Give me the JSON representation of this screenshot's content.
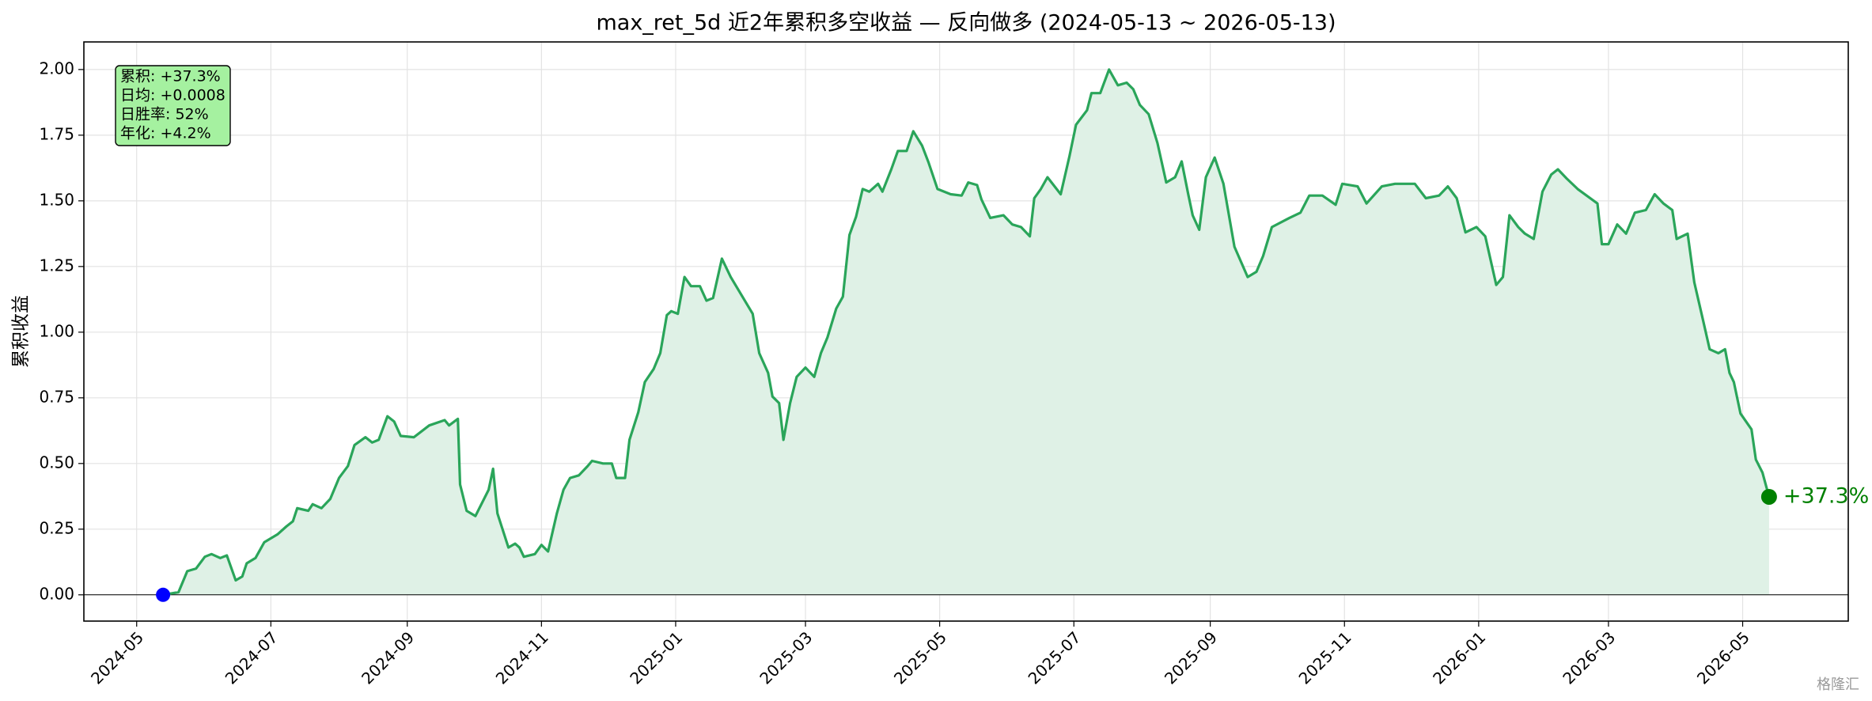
{
  "chart_data": {
    "type": "line",
    "title": "max_ret_5d 近2年累积多空收益 — 反向做多 (2024-05-13 ~ 2026-05-13)",
    "ylabel": "累积收益",
    "annotation": [
      "累积: +37.3%",
      "日均: +0.0008",
      "日胜率: 52%",
      "年化: +4.2%"
    ],
    "end_label": "+37.3%",
    "watermark": "格隆汇",
    "color": "#2aa55a",
    "fill_color": "#dff1e6",
    "start_color": "#0000ff",
    "end_color": "#008000",
    "grid": true,
    "xlim": [
      "2024-04-07",
      "2026-06-18"
    ],
    "xticks": [
      {
        "value": "2024-05-01",
        "label": "2024-05"
      },
      {
        "value": "2024-07-01",
        "label": "2024-07"
      },
      {
        "value": "2024-09-01",
        "label": "2024-09"
      },
      {
        "value": "2024-11-01",
        "label": "2024-11"
      },
      {
        "value": "2025-01-01",
        "label": "2025-01"
      },
      {
        "value": "2025-03-01",
        "label": "2025-03"
      },
      {
        "value": "2025-05-01",
        "label": "2025-05"
      },
      {
        "value": "2025-07-01",
        "label": "2025-07"
      },
      {
        "value": "2025-09-01",
        "label": "2025-09"
      },
      {
        "value": "2025-11-01",
        "label": "2025-11"
      },
      {
        "value": "2026-01-01",
        "label": "2026-01"
      },
      {
        "value": "2026-03-01",
        "label": "2026-03"
      },
      {
        "value": "2026-05-01",
        "label": "2026-05"
      }
    ],
    "ylim": [
      -0.1,
      2.105
    ],
    "yticks": [
      {
        "value": 0,
        "label": "0.00"
      },
      {
        "value": 0.25,
        "label": "0.25"
      },
      {
        "value": 0.5,
        "label": "0.50"
      },
      {
        "value": 0.75,
        "label": "0.75"
      },
      {
        "value": 1,
        "label": "1.00"
      },
      {
        "value": 1.25,
        "label": "1.25"
      },
      {
        "value": 1.5,
        "label": "1.50"
      },
      {
        "value": 1.75,
        "label": "1.75"
      },
      {
        "value": 2,
        "label": "2.00"
      }
    ],
    "x": [
      "2024-05-13",
      "2024-05-20",
      "2024-05-24",
      "2024-05-28",
      "2024-06-01",
      "2024-06-04",
      "2024-06-08",
      "2024-06-11",
      "2024-06-15",
      "2024-06-18",
      "2024-06-20",
      "2024-06-24",
      "2024-06-28",
      "2024-07-04",
      "2024-07-08",
      "2024-07-11",
      "2024-07-13",
      "2024-07-18",
      "2024-07-20",
      "2024-07-24",
      "2024-07-28",
      "2024-08-01",
      "2024-08-05",
      "2024-08-08",
      "2024-08-13",
      "2024-08-16",
      "2024-08-19",
      "2024-08-23",
      "2024-08-26",
      "2024-08-29",
      "2024-09-04",
      "2024-09-11",
      "2024-09-18",
      "2024-09-20",
      "2024-09-24",
      "2024-09-25",
      "2024-09-28",
      "2024-10-02",
      "2024-10-08",
      "2024-10-10",
      "2024-10-12",
      "2024-10-17",
      "2024-10-20",
      "2024-10-22",
      "2024-10-24",
      "2024-10-29",
      "2024-11-01",
      "2024-11-04",
      "2024-11-08",
      "2024-11-11",
      "2024-11-14",
      "2024-11-18",
      "2024-11-22",
      "2024-11-24",
      "2024-11-29",
      "2024-12-03",
      "2024-12-05",
      "2024-12-09",
      "2024-12-11",
      "2024-12-15",
      "2024-12-18",
      "2024-12-22",
      "2024-12-25",
      "2024-12-28",
      "2024-12-30",
      "2025-01-02",
      "2025-01-05",
      "2025-01-08",
      "2025-01-12",
      "2025-01-15",
      "2025-01-18",
      "2025-01-22",
      "2025-01-26",
      "2025-02-05",
      "2025-02-08",
      "2025-02-12",
      "2025-02-14",
      "2025-02-17",
      "2025-02-19",
      "2025-02-22",
      "2025-02-25",
      "2025-03-01",
      "2025-03-05",
      "2025-03-08",
      "2025-03-11",
      "2025-03-15",
      "2025-03-18",
      "2025-03-21",
      "2025-03-24",
      "2025-03-27",
      "2025-03-30",
      "2025-04-03",
      "2025-04-05",
      "2025-04-09",
      "2025-04-12",
      "2025-04-16",
      "2025-04-19",
      "2025-04-23",
      "2025-04-26",
      "2025-04-30",
      "2025-05-06",
      "2025-05-11",
      "2025-05-14",
      "2025-05-18",
      "2025-05-20",
      "2025-05-24",
      "2025-05-30",
      "2025-06-03",
      "2025-06-07",
      "2025-06-11",
      "2025-06-13",
      "2025-06-16",
      "2025-06-19",
      "2025-06-25",
      "2025-06-29",
      "2025-07-02",
      "2025-07-07",
      "2025-07-09",
      "2025-07-13",
      "2025-07-17",
      "2025-07-21",
      "2025-07-25",
      "2025-07-28",
      "2025-07-31",
      "2025-08-04",
      "2025-08-08",
      "2025-08-12",
      "2025-08-16",
      "2025-08-19",
      "2025-08-22",
      "2025-08-24",
      "2025-08-27",
      "2025-08-30",
      "2025-09-03",
      "2025-09-07",
      "2025-09-12",
      "2025-09-18",
      "2025-09-22",
      "2025-09-25",
      "2025-09-29",
      "2025-10-07",
      "2025-10-12",
      "2025-10-16",
      "2025-10-22",
      "2025-10-28",
      "2025-10-31",
      "2025-11-07",
      "2025-11-11",
      "2025-11-18",
      "2025-11-24",
      "2025-12-03",
      "2025-12-08",
      "2025-12-14",
      "2025-12-18",
      "2025-12-22",
      "2025-12-26",
      "2025-12-31",
      "2026-01-04",
      "2026-01-09",
      "2026-01-12",
      "2026-01-15",
      "2026-01-19",
      "2026-01-22",
      "2026-01-26",
      "2026-01-30",
      "2026-02-03",
      "2026-02-06",
      "2026-02-10",
      "2026-02-15",
      "2026-02-24",
      "2026-02-26",
      "2026-03-01",
      "2026-03-05",
      "2026-03-09",
      "2026-03-13",
      "2026-03-18",
      "2026-03-22",
      "2026-03-26",
      "2026-03-30",
      "2026-04-01",
      "2026-04-06",
      "2026-04-09",
      "2026-04-13",
      "2026-04-16",
      "2026-04-20",
      "2026-04-23",
      "2026-04-25",
      "2026-04-27",
      "2026-04-30",
      "2026-05-05",
      "2026-05-07",
      "2026-05-10",
      "2026-05-13"
    ],
    "values": [
      0,
      0.01,
      0.09,
      0.1,
      0.145,
      0.155,
      0.14,
      0.15,
      0.055,
      0.07,
      0.12,
      0.14,
      0.2,
      0.23,
      0.26,
      0.28,
      0.33,
      0.32,
      0.345,
      0.33,
      0.365,
      0.445,
      0.49,
      0.57,
      0.6,
      0.58,
      0.59,
      0.68,
      0.66,
      0.605,
      0.6,
      0.645,
      0.665,
      0.645,
      0.67,
      0.42,
      0.32,
      0.3,
      0.4,
      0.48,
      0.31,
      0.18,
      0.195,
      0.18,
      0.145,
      0.155,
      0.19,
      0.165,
      0.31,
      0.4,
      0.445,
      0.455,
      0.49,
      0.51,
      0.5,
      0.5,
      0.445,
      0.445,
      0.59,
      0.695,
      0.81,
      0.86,
      0.92,
      1.065,
      1.08,
      1.07,
      1.21,
      1.175,
      1.175,
      1.12,
      1.13,
      1.28,
      1.21,
      1.07,
      0.92,
      0.845,
      0.755,
      0.73,
      0.59,
      0.73,
      0.83,
      0.865,
      0.83,
      0.92,
      0.98,
      1.09,
      1.135,
      1.37,
      1.44,
      1.545,
      1.535,
      1.565,
      1.535,
      1.62,
      1.69,
      1.69,
      1.765,
      1.71,
      1.645,
      1.545,
      1.525,
      1.52,
      1.57,
      1.56,
      1.505,
      1.435,
      1.445,
      1.41,
      1.4,
      1.365,
      1.51,
      1.545,
      1.59,
      1.525,
      1.67,
      1.79,
      1.845,
      1.91,
      1.91,
      2.0,
      1.94,
      1.95,
      1.925,
      1.865,
      1.83,
      1.72,
      1.57,
      1.59,
      1.65,
      1.525,
      1.445,
      1.39,
      1.59,
      1.665,
      1.565,
      1.325,
      1.21,
      1.23,
      1.29,
      1.4,
      1.435,
      1.455,
      1.52,
      1.52,
      1.485,
      1.565,
      1.555,
      1.49,
      1.555,
      1.565,
      1.565,
      1.51,
      1.52,
      1.555,
      1.51,
      1.38,
      1.4,
      1.365,
      1.18,
      1.21,
      1.445,
      1.4,
      1.375,
      1.355,
      1.535,
      1.6,
      1.62,
      1.585,
      1.545,
      1.49,
      1.335,
      1.335,
      1.41,
      1.375,
      1.455,
      1.465,
      1.525,
      1.49,
      1.465,
      1.355,
      1.375,
      1.19,
      1.045,
      0.935,
      0.92,
      0.935,
      0.845,
      0.81,
      0.69,
      0.63,
      0.515,
      0.465,
      0.373
    ]
  }
}
